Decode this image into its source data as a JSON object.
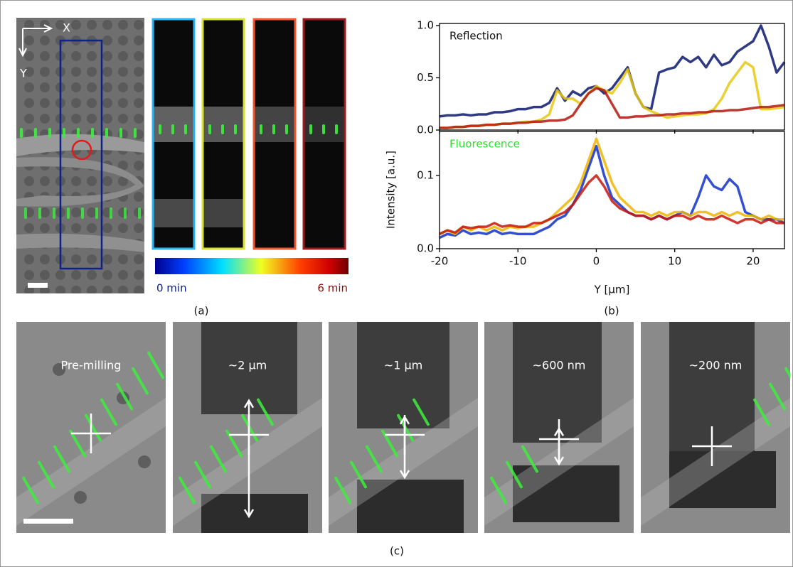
{
  "panel_a": {
    "x_axis_label": "X",
    "y_axis_label": "Y",
    "colorbar_min_label": "0 min",
    "colorbar_max_label": "6 min",
    "caption": "(a)"
  },
  "panel_b": {
    "ylabel": "Intensity [a.u.]",
    "caption": "(b)"
  },
  "panel_c": {
    "labels": [
      "Pre-milling",
      "~2 µm",
      "~1 µm",
      "~600 nm",
      "~200 nm"
    ],
    "caption": "(c)"
  },
  "chart_data": [
    {
      "type": "line",
      "title": "Reflection",
      "title_color": "#111111",
      "x": [
        -20,
        -19,
        -18,
        -17,
        -16,
        -15,
        -14,
        -13,
        -12,
        -11,
        -10,
        -9,
        -8,
        -7,
        -6,
        -5,
        -4,
        -3,
        -2,
        -1,
        0,
        1,
        2,
        3,
        4,
        5,
        6,
        7,
        8,
        9,
        10,
        11,
        12,
        13,
        14,
        15,
        16,
        17,
        18,
        19,
        20,
        21,
        22,
        23,
        24
      ],
      "xlim": [
        -20,
        24
      ],
      "ylim": [
        0,
        1.02
      ],
      "yticks": [
        {
          "value": 0,
          "label": "0.0"
        },
        {
          "value": 0.5,
          "label": "0.5"
        },
        {
          "value": 1,
          "label": "1.0"
        }
      ],
      "series": [
        {
          "color": "#0b1870",
          "values": [
            0.13,
            0.14,
            0.14,
            0.15,
            0.14,
            0.15,
            0.15,
            0.17,
            0.17,
            0.18,
            0.2,
            0.2,
            0.22,
            0.22,
            0.26,
            0.4,
            0.28,
            0.37,
            0.33,
            0.4,
            0.42,
            0.35,
            0.4,
            0.5,
            0.6,
            0.35,
            0.22,
            0.2,
            0.55,
            0.58,
            0.6,
            0.7,
            0.65,
            0.7,
            0.6,
            0.72,
            0.62,
            0.65,
            0.75,
            0.8,
            0.85,
            1.0,
            0.8,
            0.55,
            0.65
          ]
        },
        {
          "color": "#e8c810",
          "values": [
            0.02,
            0.02,
            0.03,
            0.03,
            0.04,
            0.04,
            0.05,
            0.05,
            0.06,
            0.06,
            0.07,
            0.08,
            0.08,
            0.1,
            0.15,
            0.38,
            0.3,
            0.3,
            0.25,
            0.35,
            0.42,
            0.38,
            0.35,
            0.45,
            0.58,
            0.35,
            0.22,
            0.18,
            0.15,
            0.12,
            0.13,
            0.14,
            0.15,
            0.15,
            0.16,
            0.2,
            0.3,
            0.45,
            0.55,
            0.65,
            0.6,
            0.2,
            0.2,
            0.21,
            0.22
          ]
        },
        {
          "color": "#b3180f",
          "values": [
            0.02,
            0.02,
            0.03,
            0.03,
            0.04,
            0.04,
            0.05,
            0.05,
            0.06,
            0.06,
            0.07,
            0.07,
            0.08,
            0.08,
            0.09,
            0.09,
            0.1,
            0.14,
            0.25,
            0.35,
            0.4,
            0.38,
            0.25,
            0.12,
            0.12,
            0.13,
            0.13,
            0.14,
            0.14,
            0.15,
            0.15,
            0.16,
            0.16,
            0.17,
            0.17,
            0.18,
            0.18,
            0.19,
            0.19,
            0.2,
            0.21,
            0.22,
            0.22,
            0.23,
            0.24
          ]
        }
      ]
    },
    {
      "type": "line",
      "title": "Fluorescence",
      "title_color": "#2ee02e",
      "x": [
        -20,
        -19,
        -18,
        -17,
        -16,
        -15,
        -14,
        -13,
        -12,
        -11,
        -10,
        -9,
        -8,
        -7,
        -6,
        -5,
        -4,
        -3,
        -2,
        -1,
        0,
        1,
        2,
        3,
        4,
        5,
        6,
        7,
        8,
        9,
        10,
        11,
        12,
        13,
        14,
        15,
        16,
        17,
        18,
        19,
        20,
        21,
        22,
        23,
        24
      ],
      "xlabel": "Y [µm]",
      "xlim": [
        -20,
        24
      ],
      "xticks": [
        -20,
        -10,
        0,
        10,
        20
      ],
      "ylim": [
        0,
        0.16
      ],
      "yticks": [
        {
          "value": 0,
          "label": "0.0"
        },
        {
          "value": 0.1,
          "label": "0.1"
        }
      ],
      "series": [
        {
          "color": "#1030c8",
          "values": [
            0.015,
            0.02,
            0.018,
            0.025,
            0.02,
            0.022,
            0.02,
            0.025,
            0.02,
            0.022,
            0.02,
            0.02,
            0.02,
            0.025,
            0.03,
            0.04,
            0.045,
            0.06,
            0.08,
            0.11,
            0.14,
            0.1,
            0.07,
            0.06,
            0.05,
            0.045,
            0.045,
            0.04,
            0.045,
            0.04,
            0.045,
            0.05,
            0.045,
            0.07,
            0.1,
            0.085,
            0.08,
            0.095,
            0.085,
            0.05,
            0.045,
            0.04,
            0.04,
            0.04,
            0.035
          ]
        },
        {
          "color": "#f0b400",
          "values": [
            0.02,
            0.025,
            0.02,
            0.03,
            0.025,
            0.03,
            0.025,
            0.03,
            0.025,
            0.03,
            0.028,
            0.03,
            0.03,
            0.035,
            0.04,
            0.05,
            0.06,
            0.07,
            0.09,
            0.12,
            0.15,
            0.12,
            0.09,
            0.07,
            0.06,
            0.05,
            0.05,
            0.045,
            0.05,
            0.045,
            0.05,
            0.05,
            0.045,
            0.05,
            0.05,
            0.045,
            0.05,
            0.045,
            0.05,
            0.045,
            0.045,
            0.04,
            0.045,
            0.04,
            0.04
          ]
        },
        {
          "color": "#c8160c",
          "values": [
            0.02,
            0.025,
            0.022,
            0.03,
            0.028,
            0.03,
            0.03,
            0.035,
            0.03,
            0.032,
            0.03,
            0.03,
            0.035,
            0.035,
            0.04,
            0.045,
            0.05,
            0.06,
            0.075,
            0.09,
            0.1,
            0.085,
            0.065,
            0.055,
            0.05,
            0.045,
            0.045,
            0.04,
            0.045,
            0.04,
            0.045,
            0.045,
            0.04,
            0.045,
            0.04,
            0.04,
            0.045,
            0.04,
            0.035,
            0.04,
            0.04,
            0.035,
            0.04,
            0.035,
            0.035
          ]
        }
      ]
    }
  ]
}
